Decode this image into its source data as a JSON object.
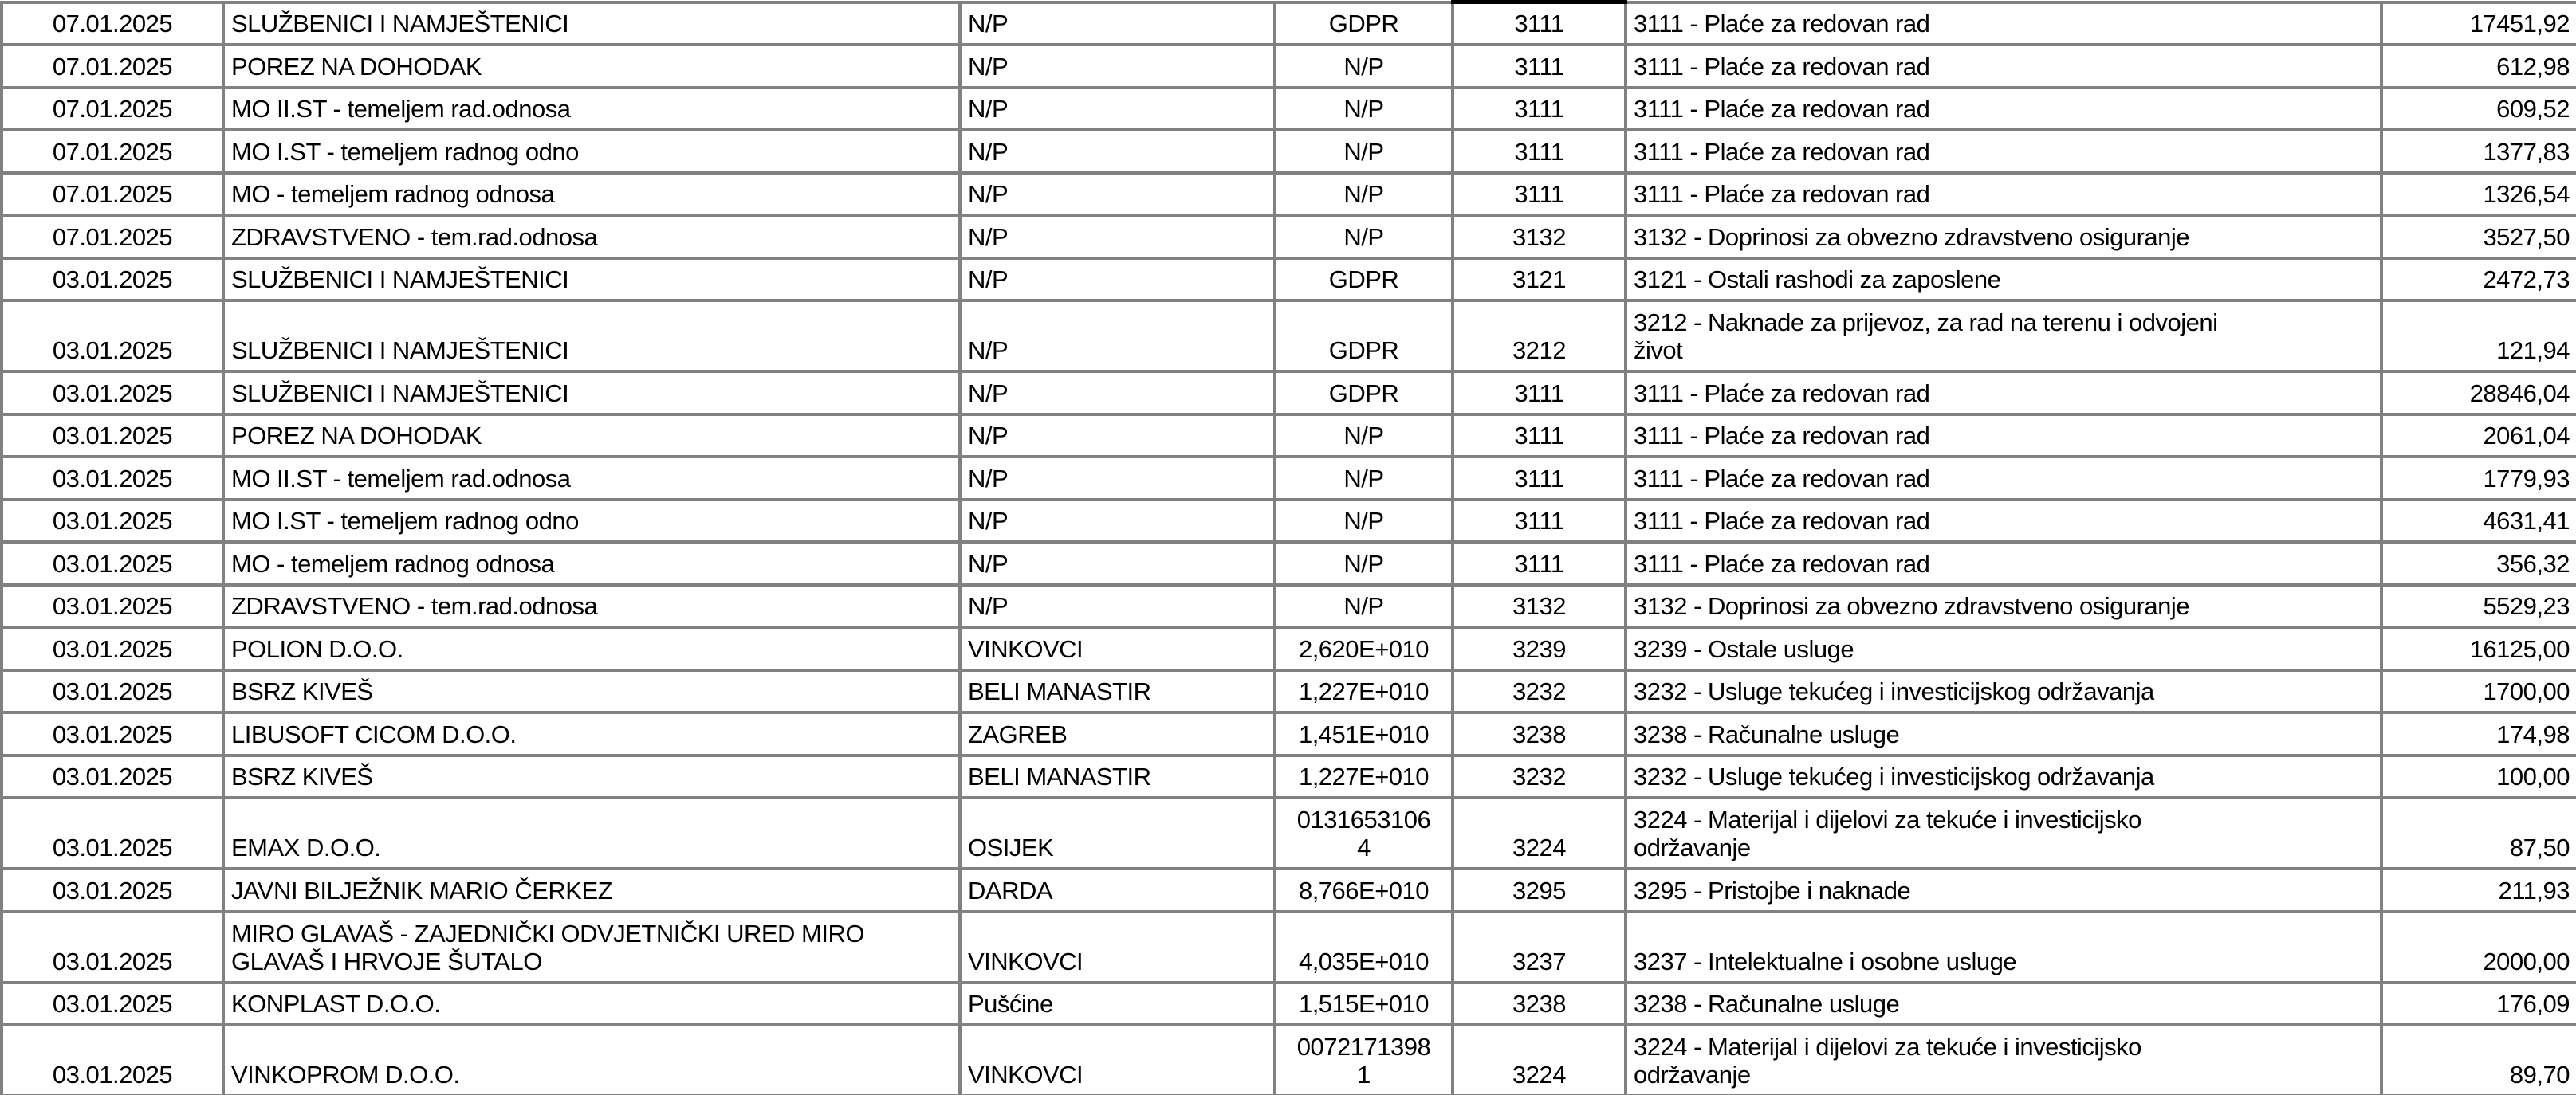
{
  "app": {
    "kind": "spreadsheet-ledger-fragment",
    "language": "hr"
  },
  "colors": {
    "background": "#ffffff",
    "grid_line": "#818181",
    "code_column_box": "#000000",
    "text": "#000000"
  },
  "table": {
    "column_keys": [
      "date",
      "payee",
      "place",
      "ref",
      "code",
      "account",
      "amount"
    ],
    "rows": [
      {
        "date": "07.01.2025",
        "payee": "SLUŽBENICI I NAMJEŠTENICI",
        "place": "N/P",
        "ref": "GDPR",
        "code": "3111",
        "account": "3111 - Plaće za redovan rad",
        "amount": "17451,92"
      },
      {
        "date": "07.01.2025",
        "payee": "POREZ NA DOHODAK",
        "place": "N/P",
        "ref": "N/P",
        "code": "3111",
        "account": "3111 - Plaće za redovan rad",
        "amount": "612,98"
      },
      {
        "date": "07.01.2025",
        "payee": "MO II.ST - temeljem rad.odnosa",
        "place": "N/P",
        "ref": "N/P",
        "code": "3111",
        "account": "3111 - Plaće za redovan rad",
        "amount": "609,52"
      },
      {
        "date": "07.01.2025",
        "payee": "MO I.ST - temeljem radnog odno",
        "place": "N/P",
        "ref": "N/P",
        "code": "3111",
        "account": "3111 - Plaće za redovan rad",
        "amount": "1377,83"
      },
      {
        "date": "07.01.2025",
        "payee": "MO - temeljem radnog odnosa",
        "place": "N/P",
        "ref": "N/P",
        "code": "3111",
        "account": "3111 - Plaće za redovan rad",
        "amount": "1326,54"
      },
      {
        "date": "07.01.2025",
        "payee": "ZDRAVSTVENO - tem.rad.odnosa",
        "place": "N/P",
        "ref": "N/P",
        "code": "3132",
        "account": "3132 - Doprinosi za obvezno zdravstveno osiguranje",
        "amount": "3527,50"
      },
      {
        "date": "03.01.2025",
        "payee": "SLUŽBENICI I NAMJEŠTENICI",
        "place": "N/P",
        "ref": "GDPR",
        "code": "3121",
        "account": "3121 - Ostali rashodi za zaposlene",
        "amount": "2472,73"
      },
      {
        "date": "03.01.2025",
        "payee": "SLUŽBENICI I NAMJEŠTENICI",
        "place": "N/P",
        "ref": "GDPR",
        "code": "3212",
        "account": "3212 - Naknade za prijevoz, za rad na terenu i odvojeni\nživot",
        "amount": "121,94"
      },
      {
        "date": "03.01.2025",
        "payee": "SLUŽBENICI I NAMJEŠTENICI",
        "place": "N/P",
        "ref": "GDPR",
        "code": "3111",
        "account": "3111 - Plaće za redovan rad",
        "amount": "28846,04"
      },
      {
        "date": "03.01.2025",
        "payee": "POREZ NA DOHODAK",
        "place": "N/P",
        "ref": "N/P",
        "code": "3111",
        "account": "3111 - Plaće za redovan rad",
        "amount": "2061,04"
      },
      {
        "date": "03.01.2025",
        "payee": "MO II.ST - temeljem rad.odnosa",
        "place": "N/P",
        "ref": "N/P",
        "code": "3111",
        "account": "3111 - Plaće za redovan rad",
        "amount": "1779,93"
      },
      {
        "date": "03.01.2025",
        "payee": "MO I.ST - temeljem radnog odno",
        "place": "N/P",
        "ref": "N/P",
        "code": "3111",
        "account": "3111 - Plaće za redovan rad",
        "amount": "4631,41"
      },
      {
        "date": "03.01.2025",
        "payee": "MO - temeljem radnog odnosa",
        "place": "N/P",
        "ref": "N/P",
        "code": "3111",
        "account": "3111 - Plaće za redovan rad",
        "amount": "356,32"
      },
      {
        "date": "03.01.2025",
        "payee": "ZDRAVSTVENO - tem.rad.odnosa",
        "place": "N/P",
        "ref": "N/P",
        "code": "3132",
        "account": "3132 - Doprinosi za obvezno zdravstveno osiguranje",
        "amount": "5529,23"
      },
      {
        "date": "03.01.2025",
        "payee": "POLION D.O.O.",
        "place": "VINKOVCI",
        "ref": "2,620E+010",
        "code": "3239",
        "account": "3239 - Ostale usluge",
        "amount": "16125,00"
      },
      {
        "date": "03.01.2025",
        "payee": "BSRZ KIVEŠ",
        "place": "BELI MANASTIR",
        "ref": "1,227E+010",
        "code": "3232",
        "account": "3232 - Usluge tekućeg i investicijskog održavanja",
        "amount": "1700,00"
      },
      {
        "date": "03.01.2025",
        "payee": "LIBUSOFT CICOM D.O.O.",
        "place": "ZAGREB",
        "ref": "1,451E+010",
        "code": "3238",
        "account": "3238 - Računalne usluge",
        "amount": "174,98"
      },
      {
        "date": "03.01.2025",
        "payee": "BSRZ KIVEŠ",
        "place": "BELI MANASTIR",
        "ref": "1,227E+010",
        "code": "3232",
        "account": "3232 - Usluge tekućeg i investicijskog održavanja",
        "amount": "100,00"
      },
      {
        "date": "03.01.2025",
        "payee": "EMAX D.O.O.",
        "place": "OSIJEK",
        "ref": "0131653106\n4",
        "code": "3224",
        "account": "3224 - Materijal i dijelovi za tekuće i investicijsko\nodržavanje",
        "amount": "87,50"
      },
      {
        "date": "03.01.2025",
        "payee": "JAVNI BILJEŽNIK MARIO ČERKEZ",
        "place": "DARDA",
        "ref": "8,766E+010",
        "code": "3295",
        "account": "3295 - Pristojbe i naknade",
        "amount": "211,93"
      },
      {
        "date": "03.01.2025",
        "payee": "MIRO GLAVAŠ - ZAJEDNIČKI ODVJETNIČKI URED MIRO\nGLAVAŠ I HRVOJE ŠUTALO",
        "place": "VINKOVCI",
        "ref": "4,035E+010",
        "code": "3237",
        "account": "3237 - Intelektualne i osobne usluge",
        "amount": "2000,00"
      },
      {
        "date": "03.01.2025",
        "payee": "KONPLAST D.O.O.",
        "place": "Pušćine",
        "ref": "1,515E+010",
        "code": "3238",
        "account": "3238 - Računalne usluge",
        "amount": "176,09"
      },
      {
        "date": "03.01.2025",
        "payee": "VINKOPROM D.O.O.",
        "place": "VINKOVCI",
        "ref": "0072171398\n1",
        "code": "3224",
        "account": "3224 - Materijal i dijelovi za tekuće i investicijsko\nodržavanje",
        "amount": "89,70"
      }
    ]
  }
}
